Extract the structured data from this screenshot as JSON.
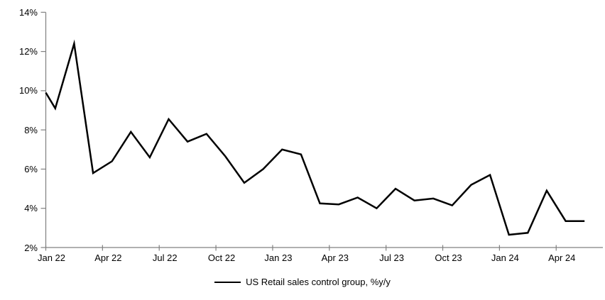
{
  "chart_data": {
    "type": "line",
    "title": "",
    "legend": "US Retail sales control group, %y/y",
    "legend_position": "bottom-center",
    "grid": false,
    "background_color": "#ffffff",
    "series_color": "#000000",
    "axis_color": "#808080",
    "text_color": "#000000",
    "ylim": [
      2,
      14
    ],
    "y_ticks": [
      14,
      12,
      10,
      8,
      6,
      4,
      2
    ],
    "y_tick_labels": [
      "14%",
      "12%",
      "10%",
      "8%",
      "6%",
      "4%",
      "2%"
    ],
    "x_tick_labels": [
      "Jan 22",
      "Apr 22",
      "Jul 22",
      "Oct 22",
      "Jan 23",
      "Apr 23",
      "Jul 23",
      "Oct 23",
      "Jan 24",
      "Apr 24"
    ],
    "x_tick_interval_months": 3,
    "edge_start_value": 9.9,
    "x": [
      "Jan 22",
      "Feb 22",
      "Mar 22",
      "Apr 22",
      "May 22",
      "Jun 22",
      "Jul 22",
      "Aug 22",
      "Sep 22",
      "Oct 22",
      "Nov 22",
      "Dec 22",
      "Jan 23",
      "Feb 23",
      "Mar 23",
      "Apr 23",
      "May 23",
      "Jun 23",
      "Jul 23",
      "Aug 23",
      "Sep 23",
      "Oct 23",
      "Nov 23",
      "Dec 23",
      "Jan 24",
      "Feb 24",
      "Mar 24",
      "Apr 24",
      "May 24"
    ],
    "values": [
      9.1,
      12.4,
      5.8,
      6.4,
      7.9,
      6.6,
      8.55,
      7.4,
      7.8,
      6.65,
      5.3,
      6.0,
      7.0,
      6.75,
      4.25,
      4.2,
      4.55,
      4.0,
      5.0,
      4.4,
      4.5,
      4.15,
      5.2,
      5.7,
      2.65,
      2.75,
      4.9,
      3.35,
      3.35
    ]
  }
}
